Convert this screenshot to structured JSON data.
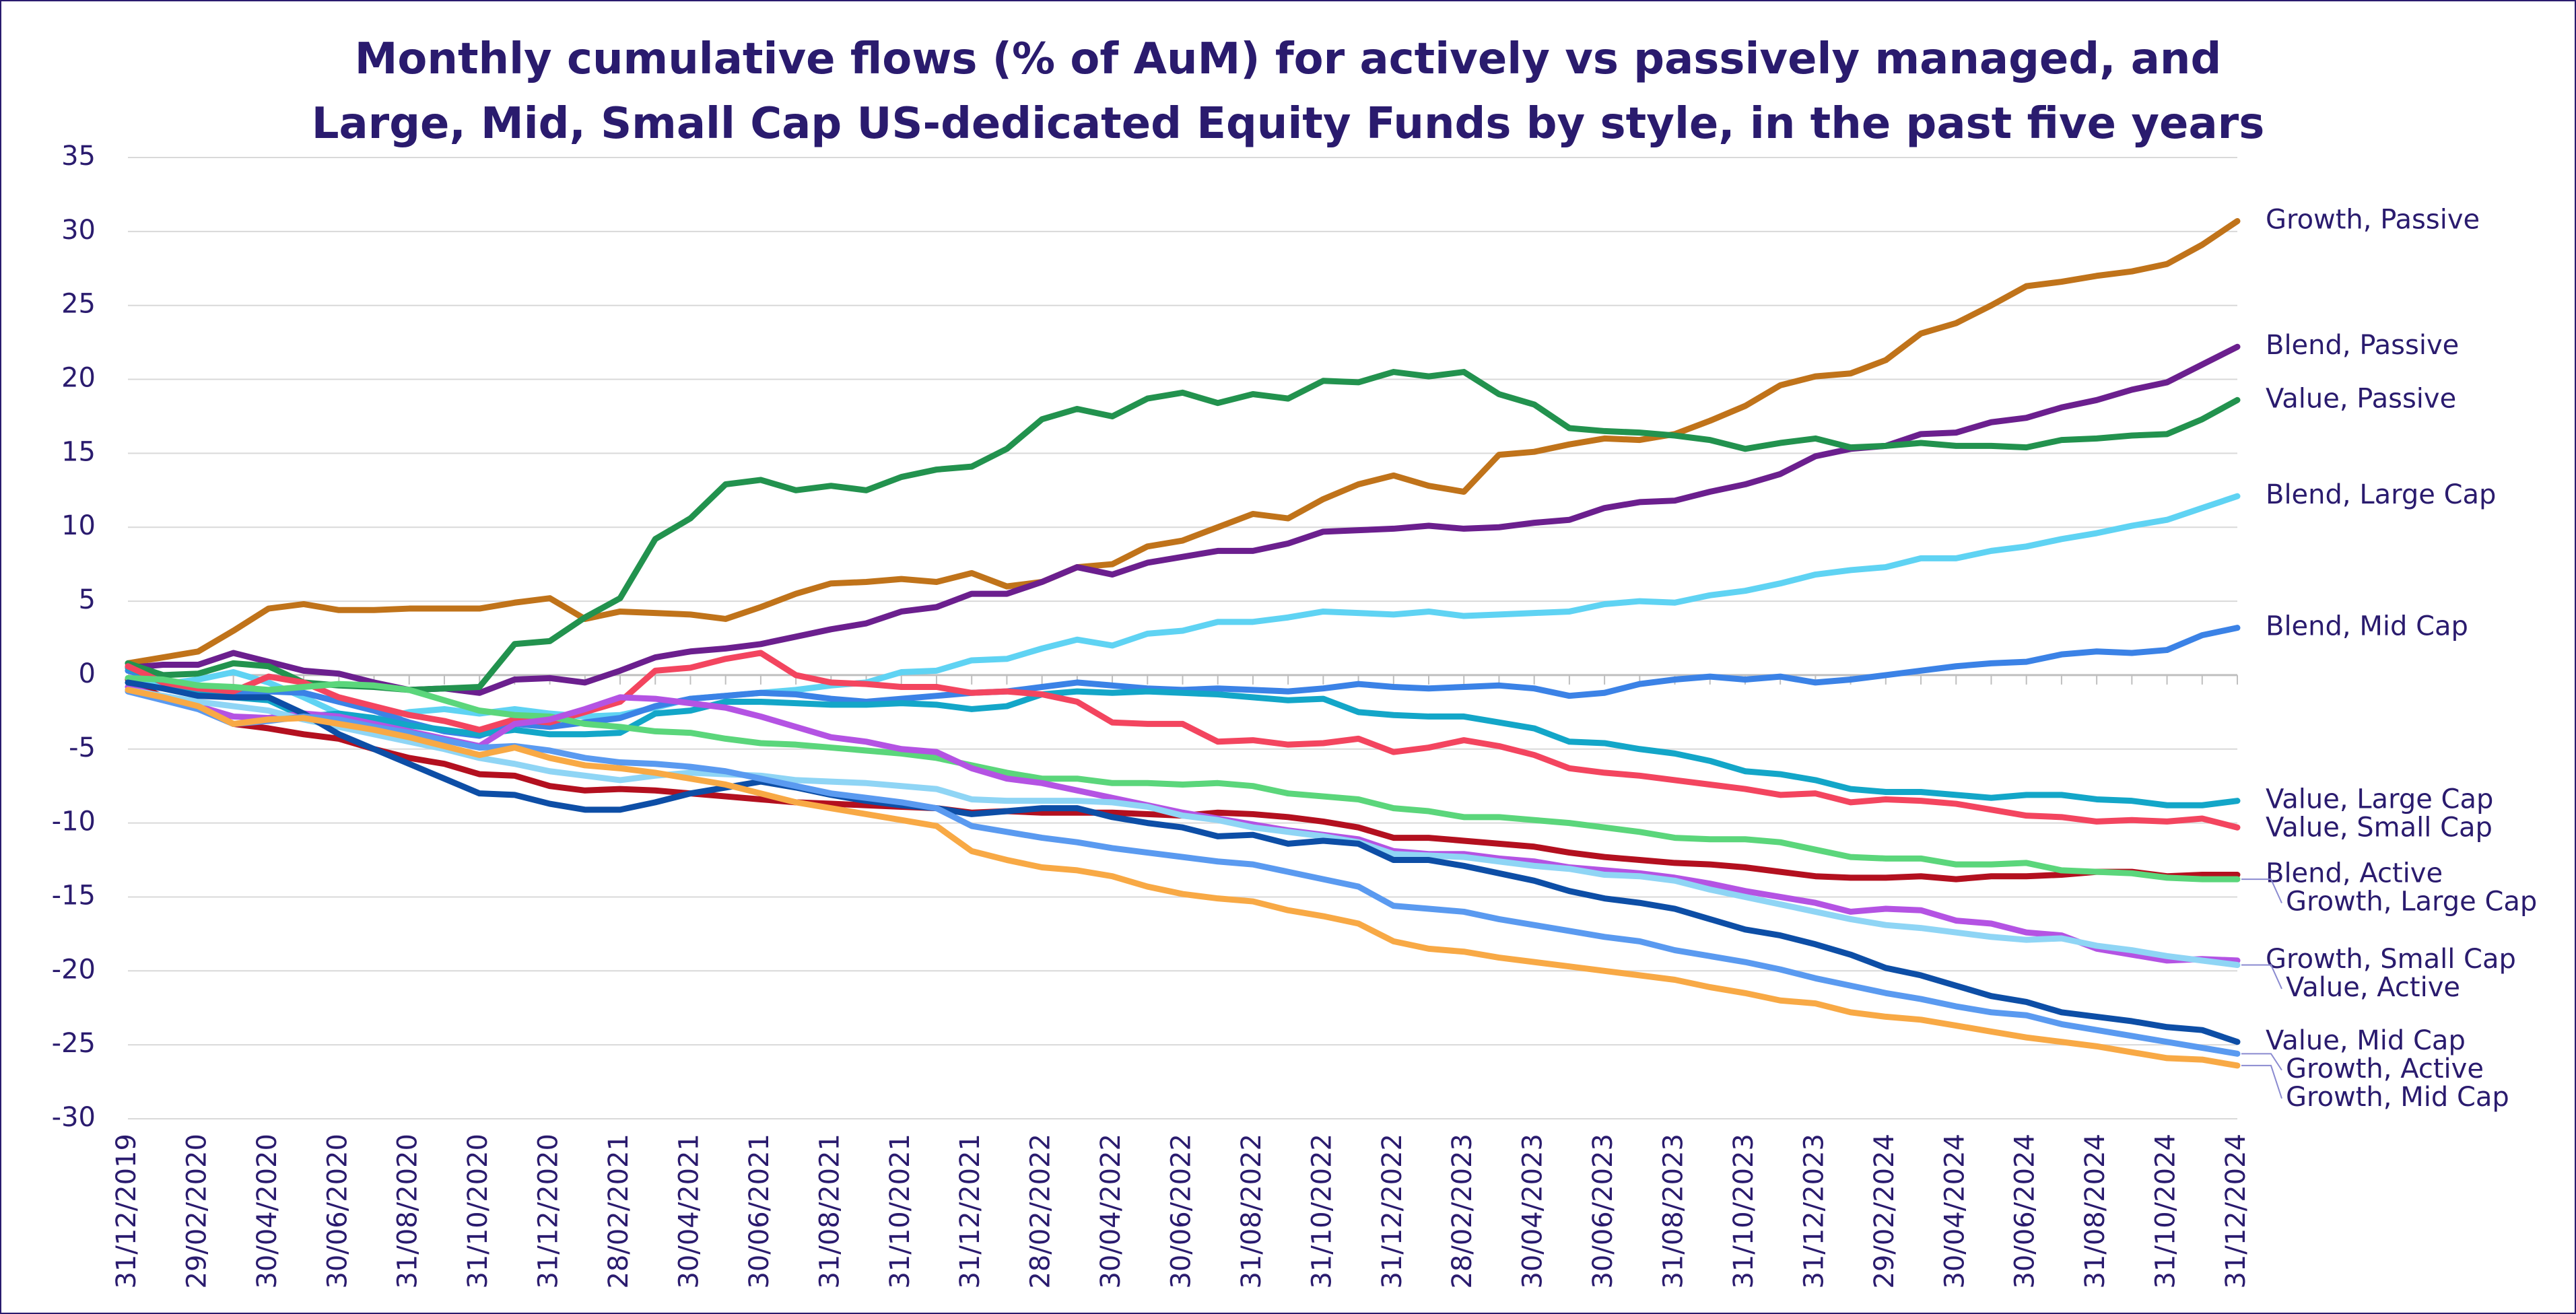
{
  "chart_data": {
    "type": "line",
    "title": "Monthly cumulative flows (% of AuM) for actively vs passively managed, and Large, Mid, Small Cap US-dedicated Equity Funds by style, in the past five years",
    "categories": [
      "31/12/2019",
      null,
      "29/02/2020",
      null,
      "30/04/2020",
      null,
      "30/06/2020",
      null,
      "31/08/2020",
      null,
      "31/10/2020",
      null,
      "31/12/2020",
      null,
      "28/02/2021",
      null,
      "30/04/2021",
      null,
      "30/06/2021",
      null,
      "31/08/2021",
      null,
      "31/10/2021",
      null,
      "31/12/2021",
      null,
      "28/02/2022",
      null,
      "30/04/2022",
      null,
      "30/06/2022",
      null,
      "31/08/2022",
      null,
      "31/10/2022",
      null,
      "31/12/2022",
      null,
      "28/02/2023",
      null,
      "30/04/2023",
      null,
      "30/06/2023",
      null,
      "31/08/2023",
      null,
      "31/10/2023",
      null,
      "31/12/2023",
      null,
      "29/02/2024",
      null,
      "30/04/2024",
      null,
      "30/06/2024",
      null,
      "31/08/2024",
      null,
      "31/10/2024",
      null,
      "31/12/2024"
    ],
    "ylim": [
      -30,
      35
    ],
    "yticks": [
      -30,
      -25,
      -20,
      -15,
      -10,
      -5,
      0,
      5,
      10,
      15,
      20,
      25,
      30,
      35
    ],
    "grid": true,
    "series": [
      {
        "name": "Growth, Passive",
        "color": "#c0731a",
        "values": [
          0.8,
          1.2,
          1.6,
          3,
          4.5,
          4.8,
          4.4,
          4.4,
          4.5,
          4.5,
          4.5,
          4.9,
          5.2,
          3.8,
          4.3,
          4.2,
          4.1,
          3.8,
          4.6,
          5.5,
          6.2,
          6.3,
          6.5,
          6.3,
          6.9,
          6.0,
          6.3,
          7.3,
          7.5,
          8.7,
          9.1,
          10.0,
          10.9,
          10.6,
          11.9,
          12.9,
          13.5,
          12.8,
          12.4,
          14.9,
          15.1,
          15.6,
          16.0,
          15.9,
          16.3,
          17.2,
          18.2,
          19.6,
          20.2,
          20.4,
          21.3,
          23.1,
          23.8,
          25.0,
          26.3,
          26.6,
          27.0,
          27.3,
          27.8,
          29.1,
          30.7
        ]
      },
      {
        "name": "Blend, Passive",
        "color": "#6b1f8e",
        "values": [
          0.5,
          0.7,
          0.7,
          1.5,
          0.9,
          0.3,
          0.1,
          -0.5,
          -1.0,
          -0.9,
          -1.2,
          -0.3,
          -0.2,
          -0.5,
          0.3,
          1.2,
          1.6,
          1.8,
          2.1,
          2.6,
          3.1,
          3.5,
          4.3,
          4.6,
          5.5,
          5.5,
          6.3,
          7.3,
          6.8,
          7.6,
          8.0,
          8.4,
          8.4,
          8.9,
          9.7,
          9.8,
          9.9,
          10.1,
          9.9,
          10.0,
          10.3,
          10.5,
          11.3,
          11.7,
          11.8,
          12.4,
          12.9,
          13.6,
          14.8,
          15.3,
          15.5,
          16.3,
          16.4,
          17.1,
          17.4,
          18.1,
          18.6,
          19.3,
          19.8,
          21.0,
          22.2
        ]
      },
      {
        "name": "Value, Passive",
        "color": "#22924e",
        "values": [
          0.8,
          0,
          0.1,
          0.8,
          0.6,
          -0.5,
          -0.7,
          -0.8,
          -1.0,
          -0.9,
          -0.8,
          2.1,
          2.3,
          3.9,
          5.2,
          9.2,
          10.6,
          12.9,
          13.2,
          12.5,
          12.8,
          12.5,
          13.4,
          13.9,
          14.1,
          15.3,
          17.3,
          18.0,
          17.5,
          18.7,
          19.1,
          18.4,
          19.0,
          18.7,
          19.9,
          19.8,
          20.5,
          20.2,
          20.5,
          19.0,
          18.3,
          16.7,
          16.5,
          16.4,
          16.2,
          15.9,
          15.3,
          15.7,
          16.0,
          15.4,
          15.5,
          15.7,
          15.5,
          15.5,
          15.4,
          15.9,
          16.0,
          16.2,
          16.3,
          17.3,
          18.6
        ]
      },
      {
        "name": "Blend, Large Cap",
        "color": "#5fd3f3",
        "values": [
          -0.3,
          -0.6,
          -0.3,
          0.2,
          -0.5,
          -1.5,
          -2.6,
          -3.0,
          -2.5,
          -2.3,
          -2.6,
          -2.3,
          -2.6,
          -2.8,
          -2.7,
          -2.2,
          -1.6,
          -1.4,
          -1.2,
          -1.0,
          -0.7,
          -0.5,
          0.2,
          0.3,
          1.0,
          1.1,
          1.8,
          2.4,
          2.0,
          2.8,
          3.0,
          3.6,
          3.6,
          3.9,
          4.3,
          4.2,
          4.1,
          4.3,
          4.0,
          4.1,
          4.2,
          4.3,
          4.8,
          5.0,
          4.9,
          5.4,
          5.7,
          6.2,
          6.8,
          7.1,
          7.3,
          7.9,
          7.9,
          8.4,
          8.7,
          9.2,
          9.6,
          10.1,
          10.5,
          11.3,
          12.1
        ]
      },
      {
        "name": "Blend, Mid Cap",
        "color": "#3b82e6",
        "values": [
          0.3,
          -0.4,
          -0.9,
          -1.3,
          -1.1,
          -1.2,
          -1.8,
          -2.4,
          -3.2,
          -3.8,
          -4.1,
          -3.3,
          -3.5,
          -3.2,
          -2.9,
          -2.1,
          -1.6,
          -1.4,
          -1.2,
          -1.3,
          -1.6,
          -1.8,
          -1.6,
          -1.4,
          -1.2,
          -1.1,
          -0.8,
          -0.5,
          -0.7,
          -0.9,
          -1.0,
          -0.9,
          -1.0,
          -1.1,
          -0.9,
          -0.6,
          -0.8,
          -0.9,
          -0.8,
          -0.7,
          -0.9,
          -1.4,
          -1.2,
          -0.6,
          -0.3,
          -0.1,
          -0.3,
          -0.1,
          -0.5,
          -0.3,
          0.0,
          0.3,
          0.6,
          0.8,
          0.9,
          1.4,
          1.6,
          1.5,
          1.7,
          2.7,
          3.2
        ]
      },
      {
        "name": "Value, Large Cap",
        "color": "#13a6c8",
        "values": [
          0.5,
          -0.5,
          -1.1,
          -1.5,
          -1.7,
          -2.8,
          -2.6,
          -2.9,
          -3.4,
          -3.7,
          -4.0,
          -3.7,
          -4.0,
          -4.0,
          -3.9,
          -2.6,
          -2.4,
          -1.8,
          -1.8,
          -1.9,
          -2.0,
          -2.0,
          -1.9,
          -2.0,
          -2.3,
          -2.1,
          -1.3,
          -1.1,
          -1.2,
          -1.1,
          -1.2,
          -1.3,
          -1.5,
          -1.7,
          -1.6,
          -2.5,
          -2.7,
          -2.8,
          -2.8,
          -3.2,
          -3.6,
          -4.5,
          -4.6,
          -5.0,
          -5.3,
          -5.8,
          -6.5,
          -6.7,
          -7.1,
          -7.7,
          -7.9,
          -7.9,
          -8.1,
          -8.3,
          -8.1,
          -8.1,
          -8.4,
          -8.5,
          -8.8,
          -8.8,
          -8.5
        ]
      },
      {
        "name": "Value, Small Cap",
        "color": "#f3455f",
        "values": [
          0.6,
          -0.5,
          -0.9,
          -1.1,
          -0.1,
          -0.5,
          -1.5,
          -2.1,
          -2.7,
          -3.1,
          -3.7,
          -3.0,
          -3.2,
          -2.5,
          -1.8,
          0.3,
          0.5,
          1.1,
          1.5,
          0.0,
          -0.5,
          -0.6,
          -0.8,
          -0.8,
          -1.2,
          -1.1,
          -1.3,
          -1.8,
          -3.2,
          -3.3,
          -3.3,
          -4.5,
          -4.4,
          -4.7,
          -4.6,
          -4.3,
          -5.2,
          -4.9,
          -4.4,
          -4.8,
          -5.4,
          -6.3,
          -6.6,
          -6.8,
          -7.1,
          -7.4,
          -7.7,
          -8.1,
          -8.0,
          -8.6,
          -8.4,
          -8.5,
          -8.7,
          -9.1,
          -9.5,
          -9.6,
          -9.9,
          -9.8,
          -9.9,
          -9.7,
          -10.3
        ]
      },
      {
        "name": "Blend, Active",
        "color": "#b3101f",
        "values": [
          -0.3,
          -1.5,
          -2.0,
          -3.3,
          -3.6,
          -4.0,
          -4.3,
          -5.0,
          -5.6,
          -6.0,
          -6.7,
          -6.8,
          -7.5,
          -7.8,
          -7.7,
          -7.8,
          -8.0,
          -8.2,
          -8.4,
          -8.6,
          -8.7,
          -8.8,
          -8.9,
          -9.0,
          -9.3,
          -9.2,
          -9.3,
          -9.3,
          -9.3,
          -9.4,
          -9.5,
          -9.3,
          -9.4,
          -9.6,
          -9.9,
          -10.3,
          -11.0,
          -11.0,
          -11.2,
          -11.4,
          -11.6,
          -12.0,
          -12.3,
          -12.5,
          -12.7,
          -12.8,
          -13.0,
          -13.3,
          -13.6,
          -13.7,
          -13.7,
          -13.6,
          -13.8,
          -13.6,
          -13.6,
          -13.5,
          -13.3,
          -13.3,
          -13.6,
          -13.5,
          -13.5
        ]
      },
      {
        "name": "Growth, Large Cap",
        "color": "#5bd67b",
        "values": [
          -0.2,
          -0.3,
          -0.7,
          -0.8,
          -1.0,
          -0.8,
          -0.6,
          -0.7,
          -1.0,
          -1.7,
          -2.4,
          -2.7,
          -2.8,
          -3.3,
          -3.5,
          -3.8,
          -3.9,
          -4.3,
          -4.6,
          -4.7,
          -4.9,
          -5.1,
          -5.3,
          -5.6,
          -6.1,
          -6.6,
          -7.0,
          -7.0,
          -7.3,
          -7.3,
          -7.4,
          -7.3,
          -7.5,
          -8.0,
          -8.2,
          -8.4,
          -9.0,
          -9.2,
          -9.6,
          -9.6,
          -9.8,
          -10.0,
          -10.3,
          -10.6,
          -11.0,
          -11.1,
          -11.1,
          -11.3,
          -11.8,
          -12.3,
          -12.4,
          -12.4,
          -12.8,
          -12.8,
          -12.7,
          -13.2,
          -13.3,
          -13.4,
          -13.7,
          -13.8,
          -13.8
        ]
      },
      {
        "name": "Growth, Small Cap",
        "color": "#b453e3",
        "values": [
          -0.8,
          -1.5,
          -2.1,
          -2.8,
          -2.9,
          -2.6,
          -2.8,
          -3.3,
          -3.8,
          -4.3,
          -4.8,
          -3.3,
          -3.0,
          -2.3,
          -1.5,
          -1.6,
          -1.9,
          -2.2,
          -2.8,
          -3.5,
          -4.2,
          -4.5,
          -5.0,
          -5.2,
          -6.3,
          -7.0,
          -7.3,
          -7.8,
          -8.3,
          -8.8,
          -9.3,
          -9.7,
          -10.1,
          -10.5,
          -10.8,
          -11.1,
          -11.9,
          -12.1,
          -12.1,
          -12.4,
          -12.6,
          -13.0,
          -13.2,
          -13.4,
          -13.7,
          -14.1,
          -14.6,
          -15.0,
          -15.4,
          -16.0,
          -15.8,
          -15.9,
          -16.6,
          -16.8,
          -17.4,
          -17.6,
          -18.5,
          -18.9,
          -19.3,
          -19.2,
          -19.3
        ]
      },
      {
        "name": "Value, Active",
        "color": "#8fd5f5",
        "values": [
          -1.0,
          -1.4,
          -1.8,
          -2.1,
          -2.4,
          -3.0,
          -3.5,
          -4.0,
          -4.5,
          -5.0,
          -5.6,
          -6.0,
          -6.5,
          -6.8,
          -7.1,
          -6.8,
          -6.6,
          -6.7,
          -6.8,
          -7.1,
          -7.2,
          -7.3,
          -7.5,
          -7.7,
          -8.4,
          -8.5,
          -8.5,
          -8.5,
          -8.6,
          -8.9,
          -9.5,
          -9.8,
          -10.3,
          -10.6,
          -10.9,
          -11.3,
          -12.1,
          -12.2,
          -12.3,
          -12.6,
          -12.9,
          -13.1,
          -13.5,
          -13.6,
          -13.9,
          -14.5,
          -15.0,
          -15.5,
          -16.0,
          -16.5,
          -16.9,
          -17.1,
          -17.4,
          -17.7,
          -17.9,
          -17.8,
          -18.3,
          -18.6,
          -19.0,
          -19.3,
          -19.6
        ]
      },
      {
        "name": "Value, Mid Cap",
        "color": "#0d4ea6",
        "values": [
          -0.5,
          -0.9,
          -1.4,
          -1.5,
          -1.5,
          -2.6,
          -4.0,
          -5.0,
          -6.0,
          -7.0,
          -8.0,
          -8.1,
          -8.7,
          -9.1,
          -9.1,
          -8.6,
          -8.0,
          -7.6,
          -7.2,
          -7.6,
          -8.1,
          -8.5,
          -8.8,
          -9.0,
          -9.4,
          -9.2,
          -9.0,
          -9.0,
          -9.6,
          -10.0,
          -10.3,
          -10.9,
          -10.8,
          -11.4,
          -11.2,
          -11.4,
          -12.5,
          -12.5,
          -12.9,
          -13.4,
          -13.9,
          -14.6,
          -15.1,
          -15.4,
          -15.8,
          -16.5,
          -17.2,
          -17.6,
          -18.2,
          -18.9,
          -19.8,
          -20.3,
          -21.0,
          -21.7,
          -22.1,
          -22.8,
          -23.1,
          -23.4,
          -23.8,
          -24.0,
          -24.8
        ]
      },
      {
        "name": "Growth, Active",
        "color": "#5a9af0",
        "values": [
          -1.1,
          -1.7,
          -2.3,
          -3.3,
          -3.1,
          -2.8,
          -3.0,
          -3.5,
          -3.9,
          -4.4,
          -4.9,
          -4.8,
          -5.1,
          -5.6,
          -5.9,
          -6.0,
          -6.2,
          -6.5,
          -7.0,
          -7.5,
          -8.0,
          -8.3,
          -8.6,
          -9.0,
          -10.2,
          -10.6,
          -11.0,
          -11.3,
          -11.7,
          -12.0,
          -12.3,
          -12.6,
          -12.8,
          -13.3,
          -13.8,
          -14.3,
          -15.6,
          -15.8,
          -16.0,
          -16.5,
          -16.9,
          -17.3,
          -17.7,
          -18.0,
          -18.6,
          -19.0,
          -19.4,
          -19.9,
          -20.5,
          -21.0,
          -21.5,
          -21.9,
          -22.4,
          -22.8,
          -23.0,
          -23.6,
          -24.0,
          -24.4,
          -24.8,
          -25.2,
          -25.6
        ]
      },
      {
        "name": "Growth, Mid Cap",
        "color": "#f8a945",
        "values": [
          -1.0,
          -1.5,
          -2.1,
          -3.3,
          -3.0,
          -2.9,
          -3.3,
          -3.7,
          -4.2,
          -4.8,
          -5.4,
          -4.9,
          -5.6,
          -6.1,
          -6.3,
          -6.6,
          -7.0,
          -7.4,
          -8.0,
          -8.6,
          -9.0,
          -9.4,
          -9.8,
          -10.2,
          -11.9,
          -12.5,
          -13.0,
          -13.2,
          -13.6,
          -14.3,
          -14.8,
          -15.1,
          -15.3,
          -15.9,
          -16.3,
          -16.8,
          -18.0,
          -18.5,
          -18.7,
          -19.1,
          -19.4,
          -19.7,
          -20.0,
          -20.3,
          -20.6,
          -21.1,
          -21.5,
          -22.0,
          -22.2,
          -22.8,
          -23.1,
          -23.3,
          -23.7,
          -24.1,
          -24.5,
          -24.8,
          -25.1,
          -25.5,
          -25.9,
          -26.0,
          -26.4
        ]
      }
    ]
  }
}
